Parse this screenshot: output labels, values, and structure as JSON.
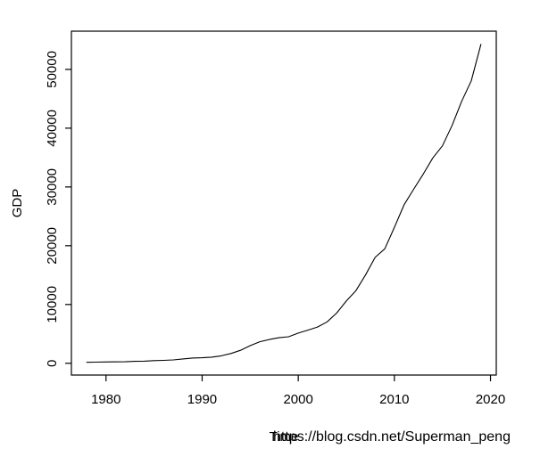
{
  "page": {
    "background": "#ffffff",
    "foreground": "#000000"
  },
  "watermark": {
    "text": "https://blog.csdn.net/Superman_peng",
    "color": "#dedede"
  },
  "chart_data": {
    "type": "line",
    "title": "",
    "xlabel": "Time",
    "ylabel": "GDP",
    "x": [
      1978,
      1979,
      1980,
      1981,
      1982,
      1983,
      1984,
      1985,
      1986,
      1987,
      1988,
      1989,
      1990,
      1991,
      1992,
      1993,
      1994,
      1995,
      1996,
      1997,
      1998,
      1999,
      2000,
      2001,
      2002,
      2003,
      2004,
      2005,
      2006,
      2007,
      2008,
      2009,
      2010,
      2011,
      2012,
      2013,
      2014,
      2015,
      2016,
      2017,
      2018,
      2019
    ],
    "values": [
      162.9,
      193.0,
      229.2,
      249.7,
      263.3,
      327.9,
      370.2,
      451.7,
      502.9,
      576.2,
      749.1,
      893.4,
      934.7,
      1045.7,
      1279.8,
      1662.8,
      2216.8,
      3002.7,
      3661.2,
      4041.1,
      4356.6,
      4517.9,
      5137.7,
      5640.1,
      6168.7,
      7048.6,
      8553.8,
      10587.4,
      12362.8,
      15012.5,
      18018.5,
      19480.5,
      23092.4,
      26931.0,
      29599.3,
      32191.3,
      34938.2,
      37002.2,
      40471.8,
      44552.8,
      48055.9,
      54259.2
    ],
    "xticks": [
      1980,
      1990,
      2000,
      2010,
      2020
    ],
    "yticks": [
      0,
      10000,
      20000,
      30000,
      40000,
      50000
    ],
    "xlim": [
      1976.4,
      2020.6
    ],
    "ylim": [
      -2000,
      56500
    ],
    "line_color": "#000000",
    "axis_color": "#000000",
    "grid": false,
    "legend": null
  }
}
